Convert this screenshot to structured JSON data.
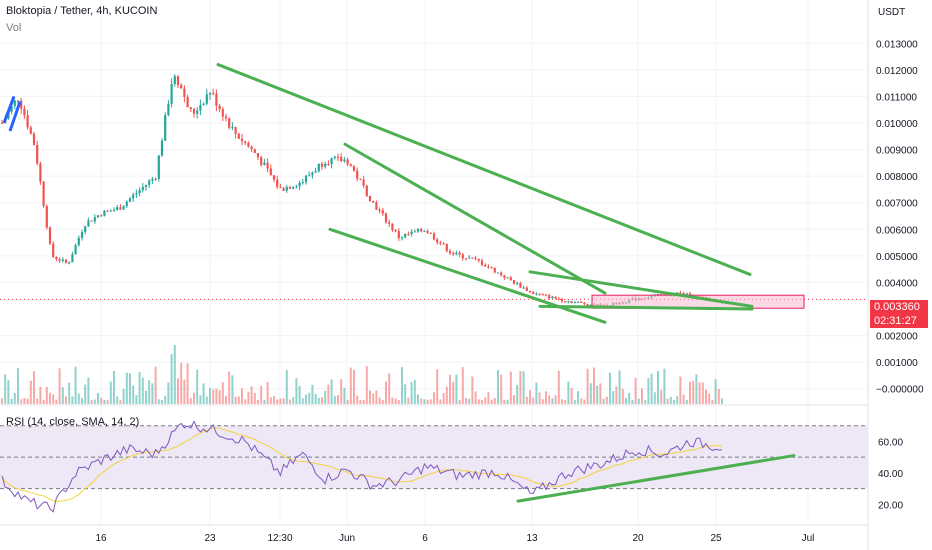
{
  "header": {
    "title": "Bloktopia / Tether, 4h, KUCOIN",
    "volume_label": "Vol"
  },
  "price_axis": {
    "unit": "USDT",
    "ticks": [
      "0.013000",
      "0.012000",
      "0.011000",
      "0.010000",
      "0.009000",
      "0.008000",
      "0.007000",
      "0.006000",
      "0.005000",
      "0.004000",
      "0.002000",
      "0.001000",
      "−0.000000"
    ]
  },
  "last_price": {
    "value": "0.003360",
    "countdown": "02:31:27"
  },
  "rsi": {
    "label": "RSI (14, close, SMA, 14, 2)",
    "ticks": [
      "60.00",
      "40.00",
      "20.00"
    ]
  },
  "time_axis": [
    "16",
    "23",
    "12:30",
    "Jun",
    "6",
    "13",
    "20",
    "25",
    "Jul"
  ],
  "colors": {
    "up": "#26a69a",
    "down": "#ef5350",
    "trendline": "#4caf50",
    "rsi": "#7e57c2",
    "rsi_ma": "#f5d33f",
    "band": "#ede7f6",
    "price_line": "#f23645",
    "zone": "#f8bbd0"
  },
  "chart_data": {
    "type": "candlestick",
    "x": [
      "16",
      "23",
      "12:30",
      "Jun",
      "6",
      "13",
      "20",
      "25",
      "Jul"
    ],
    "price": {
      "range": [
        -0.0005,
        0.0135
      ],
      "anchors": [
        [
          "start",
          0.01
        ],
        [
          "",
          0.011
        ],
        [
          "",
          0.0091
        ],
        [
          "",
          0.005
        ],
        [
          "",
          0.0047
        ],
        [
          "",
          0.0062
        ],
        [
          "16",
          0.0066
        ],
        [
          "",
          0.0068
        ],
        [
          "",
          0.0074
        ],
        [
          "",
          0.008
        ],
        [
          "",
          0.012
        ],
        [
          "",
          0.0103
        ],
        [
          "23",
          0.0112
        ],
        [
          "",
          0.0097
        ],
        [
          "",
          0.0088
        ],
        [
          "12:30",
          0.0075
        ],
        [
          "",
          0.0078
        ],
        [
          "",
          0.0086
        ],
        [
          "Jun",
          0.0086
        ],
        [
          "",
          0.007
        ],
        [
          "",
          0.0057
        ],
        [
          "6",
          0.006
        ],
        [
          "",
          0.0051
        ],
        [
          "",
          0.0048
        ],
        [
          "",
          0.0042
        ],
        [
          "13",
          0.0036
        ],
        [
          "",
          0.0033
        ],
        [
          "",
          0.0031
        ],
        [
          "20",
          0.0034
        ],
        [
          "",
          0.0036
        ],
        [
          "25",
          0.0033
        ]
      ],
      "last": 0.00336,
      "zone": [
        0.00303,
        0.00352
      ],
      "trendlines": [
        [
          [
            "23",
            0.0122
          ],
          [
            "13",
            0.0043
          ]
        ],
        [
          [
            "Jun",
            0.0092
          ],
          [
            "13",
            0.0036
          ]
        ],
        [
          [
            "",
            0.006
          ],
          [
            "13",
            0.0025
          ]
        ],
        [
          [
            "13",
            0.0044
          ],
          [
            "25",
            0.0031
          ]
        ],
        [
          [
            "13",
            0.0031
          ],
          [
            "25",
            0.003
          ]
        ]
      ]
    },
    "rsi": {
      "range": [
        10,
        80
      ],
      "bands": [
        30,
        50,
        70
      ],
      "anchors": [
        [
          "start",
          35
        ],
        [
          "",
          22
        ],
        [
          "",
          17
        ],
        [
          "",
          40
        ],
        [
          "16",
          48
        ],
        [
          "",
          55
        ],
        [
          "",
          52
        ],
        [
          "",
          72
        ],
        [
          "23",
          68
        ],
        [
          "",
          60
        ],
        [
          "12:30",
          40
        ],
        [
          "",
          52
        ],
        [
          "",
          36
        ],
        [
          "Jun",
          42
        ],
        [
          "",
          32
        ],
        [
          "",
          35
        ],
        [
          "6",
          44
        ],
        [
          "",
          38
        ],
        [
          "",
          41
        ],
        [
          "13",
          26
        ],
        [
          "",
          40
        ],
        [
          "",
          46
        ],
        [
          "20",
          55
        ],
        [
          "",
          52
        ],
        [
          "",
          60
        ],
        [
          "25",
          57
        ]
      ],
      "trendline": [
        [
          "13",
          22
        ],
        [
          "Jul",
          51
        ]
      ]
    }
  }
}
